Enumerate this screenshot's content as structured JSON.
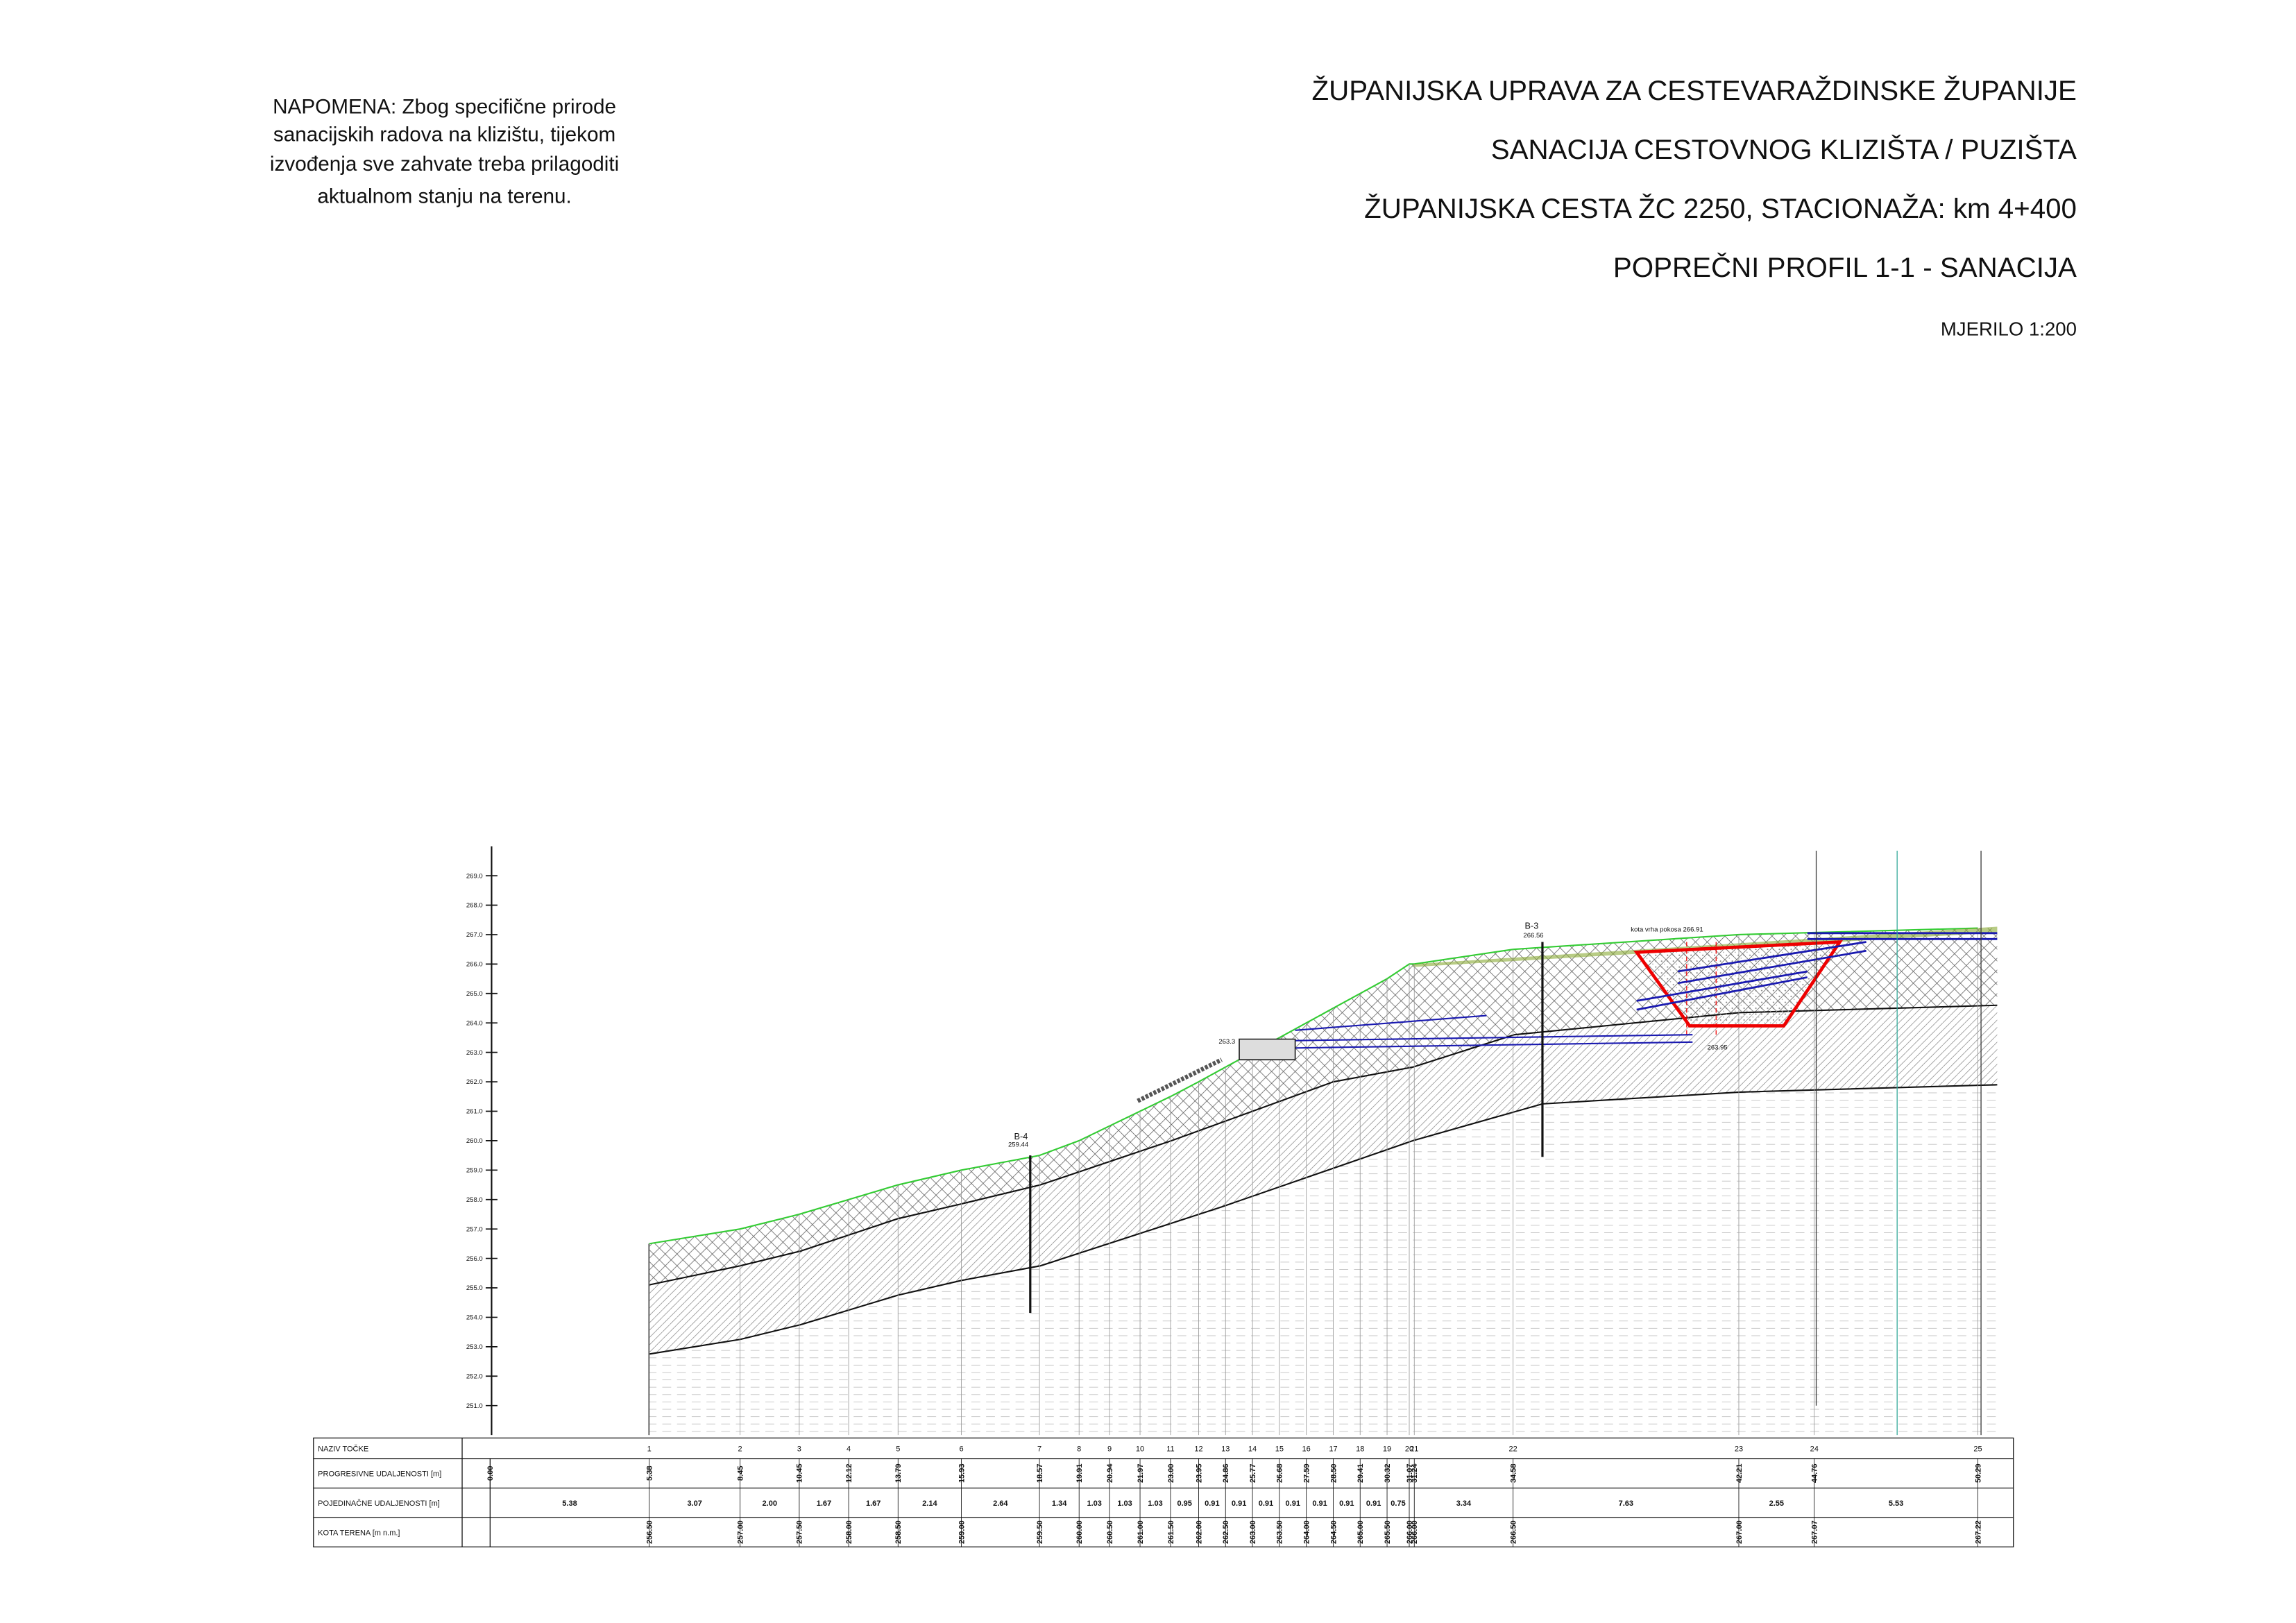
{
  "note": {
    "lines": [
      "NAPOMENA: Zbog specifične prirode",
      "sanacijskih radova na klizištu, tijekom",
      "izvođenja sve zahvate treba prilagoditi",
      "aktualnom stanju na terenu."
    ]
  },
  "title_block": {
    "lines": [
      "ŽUPANIJSKA UPRAVA ZA CESTEVARAŽDINSKE ŽUPANIJE",
      "SANACIJA CESTOVNOG KLIZIŠTA / PUZIŠTA",
      "ŽUPANIJSKA CESTA ŽC 2250, STACIONAŽA: km 4+400",
      "POPREČNI PROFIL 1-1 - SANACIJA"
    ],
    "scale": "MJERILO 1:200"
  },
  "profile": {
    "ylim": [
      250,
      270
    ],
    "yticks": [
      {
        "value": 251,
        "label": "251.0"
      },
      {
        "value": 252,
        "label": "252.0"
      },
      {
        "value": 253,
        "label": "253.0"
      },
      {
        "value": 254,
        "label": "254.0"
      },
      {
        "value": 255,
        "label": "255.0"
      },
      {
        "value": 256,
        "label": "256.0"
      },
      {
        "value": 257,
        "label": "257.0"
      },
      {
        "value": 258,
        "label": "258.0"
      },
      {
        "value": 259,
        "label": "259.0"
      },
      {
        "value": 260,
        "label": "260.0"
      },
      {
        "value": 261,
        "label": "261.0"
      },
      {
        "value": 262,
        "label": "262.0"
      },
      {
        "value": 263,
        "label": "263.0"
      },
      {
        "value": 264,
        "label": "264.0"
      },
      {
        "value": 265,
        "label": "265.0"
      },
      {
        "value": 266,
        "label": "266.0"
      },
      {
        "value": 267,
        "label": "267.0"
      },
      {
        "value": 268,
        "label": "268.0"
      },
      {
        "value": 269,
        "label": "269.0"
      }
    ],
    "annotations": [
      "B-4",
      "259.44",
      "B-3",
      "266.56",
      "kota vrha pokosa 266.91",
      "263.95",
      "263.3"
    ]
  },
  "table": {
    "row_labels": [
      "NAZIV TOČKE",
      "PROGRESIVNE UDALJENOSTI [m]",
      "POJEDINAČNE UDALJENOSTI [m]",
      "KOTA TERENA [m n.m.]"
    ],
    "points": [
      {
        "name": null,
        "progressive": "0.00",
        "elevation": null
      },
      {
        "name": "1",
        "progressive": "5.38",
        "elevation": "256.50"
      },
      {
        "name": "2",
        "progressive": "8.45",
        "elevation": "257.00"
      },
      {
        "name": "3",
        "progressive": "10.45",
        "elevation": "257.50"
      },
      {
        "name": "4",
        "progressive": "12.12",
        "elevation": "258.00"
      },
      {
        "name": "5",
        "progressive": "13.79",
        "elevation": "258.50"
      },
      {
        "name": "6",
        "progressive": "15.93",
        "elevation": "259.00"
      },
      {
        "name": "7",
        "progressive": "18.57",
        "elevation": "259.50"
      },
      {
        "name": "8",
        "progressive": "19.91",
        "elevation": "260.00"
      },
      {
        "name": "9",
        "progressive": "20.94",
        "elevation": "260.50"
      },
      {
        "name": "10",
        "progressive": "21.97",
        "elevation": "261.00"
      },
      {
        "name": "11",
        "progressive": "23.00",
        "elevation": "261.50"
      },
      {
        "name": "12",
        "progressive": "23.95",
        "elevation": "262.00"
      },
      {
        "name": "13",
        "progressive": "24.86",
        "elevation": "262.50"
      },
      {
        "name": "14",
        "progressive": "25.77",
        "elevation": "263.00"
      },
      {
        "name": "15",
        "progressive": "26.68",
        "elevation": "263.50"
      },
      {
        "name": "16",
        "progressive": "27.59",
        "elevation": "264.00"
      },
      {
        "name": "17",
        "progressive": "28.50",
        "elevation": "264.50"
      },
      {
        "name": "18",
        "progressive": "29.41",
        "elevation": "265.00"
      },
      {
        "name": "19",
        "progressive": "30.32",
        "elevation": "265.50"
      },
      {
        "name": "20",
        "progressive": "31.07",
        "elevation": "266.00"
      },
      {
        "name": "21",
        "progressive": "31.24",
        "elevation": "266.00"
      },
      {
        "name": "22",
        "progressive": "34.58",
        "elevation": "266.50"
      },
      {
        "name": "23",
        "progressive": "42.21",
        "elevation": "267.00"
      },
      {
        "name": "24",
        "progressive": "44.76",
        "elevation": "267.07"
      },
      {
        "name": "25",
        "progressive": "50.29",
        "elevation": "267.22"
      }
    ],
    "segments": [
      "5.38",
      "3.07",
      "2.00",
      "1.67",
      "1.67",
      "2.14",
      "2.64",
      "1.34",
      "1.03",
      "1.03",
      "1.03",
      "0.95",
      "0.91",
      "0.91",
      "0.91",
      "0.91",
      "0.91",
      "0.91",
      "0.91",
      "0.75",
      null,
      "3.34",
      "7.63",
      "2.55",
      "5.53"
    ]
  }
}
